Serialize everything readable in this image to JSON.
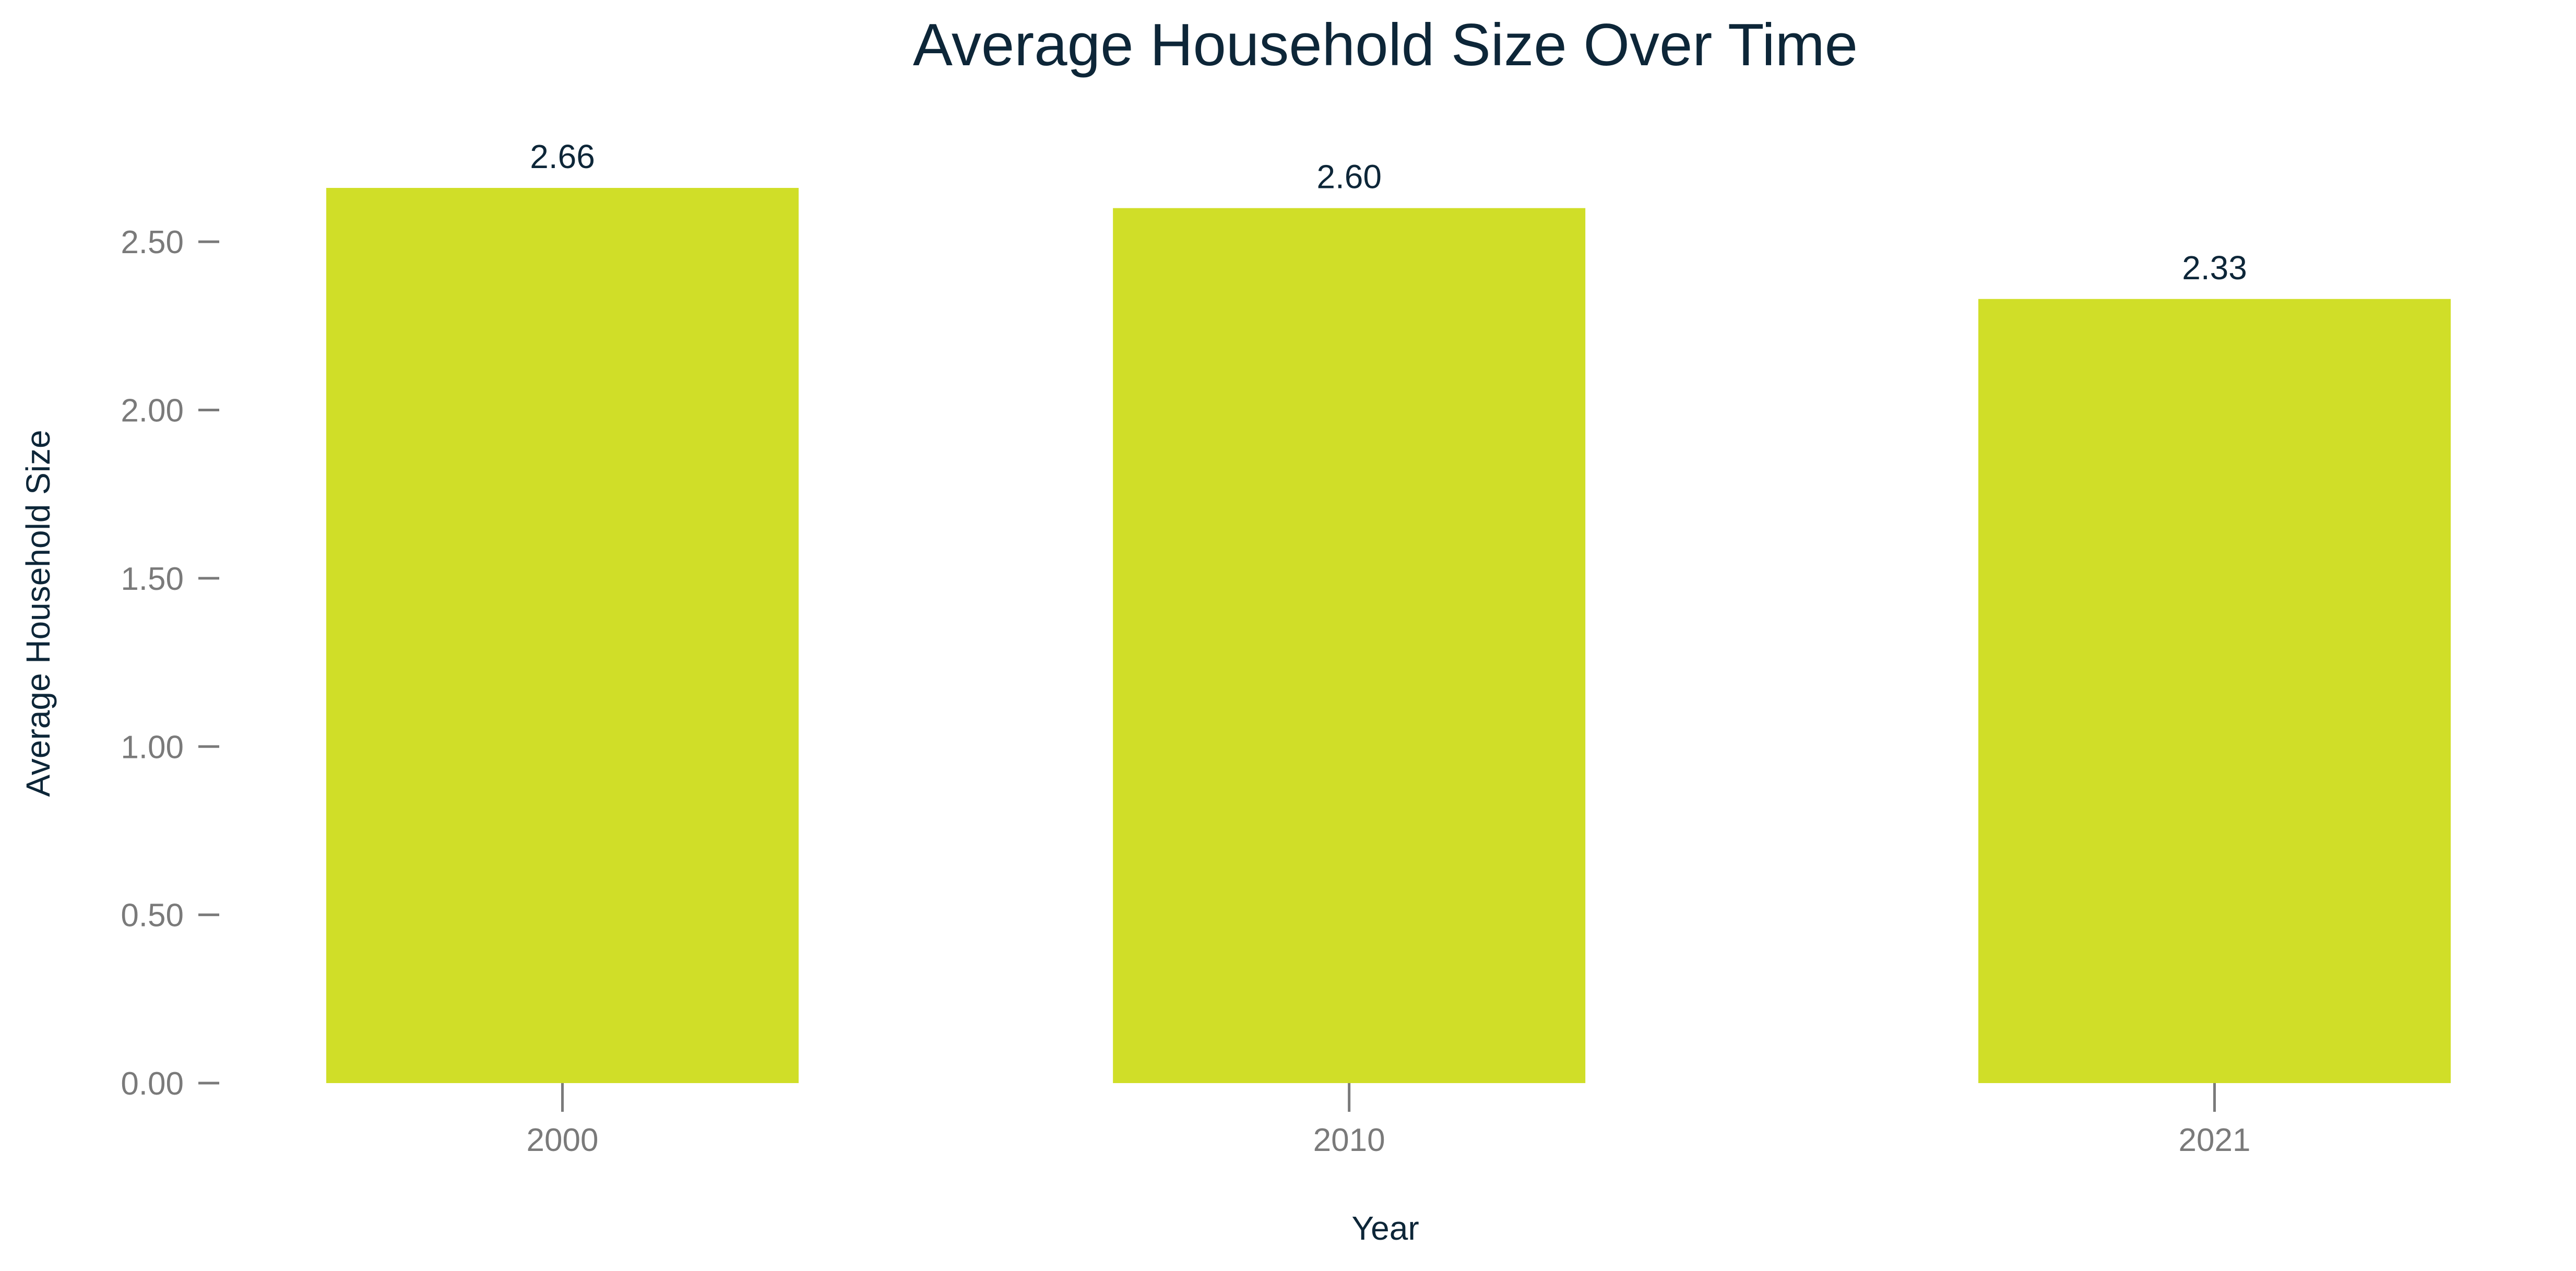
{
  "chart_data": {
    "type": "bar",
    "title": "Average Household Size Over Time",
    "xlabel": "Year",
    "ylabel": "Average Household Size",
    "categories": [
      "2000",
      "2010",
      "2021"
    ],
    "x": [
      2000,
      2010,
      2021
    ],
    "values": [
      2.66,
      2.6,
      2.33
    ],
    "data_labels": [
      "2.66",
      "2.60",
      "2.33"
    ],
    "ylim": [
      0,
      2.66
    ],
    "yticks": [
      0,
      0.5,
      1.0,
      1.5,
      2.0,
      2.5
    ],
    "ytick_labels": [
      "0.00",
      "0.50",
      "1.00",
      "1.50",
      "2.00",
      "2.50"
    ],
    "grid": false,
    "legend": "none"
  },
  "colors": {
    "bar": "#d0de28",
    "title": "#0d2638",
    "axis_label": "#0d2638",
    "data_label": "#0d2638",
    "tick_label": "#7a7a7a",
    "tick_mark": "#7a7a7a",
    "background": "#ffffff"
  }
}
